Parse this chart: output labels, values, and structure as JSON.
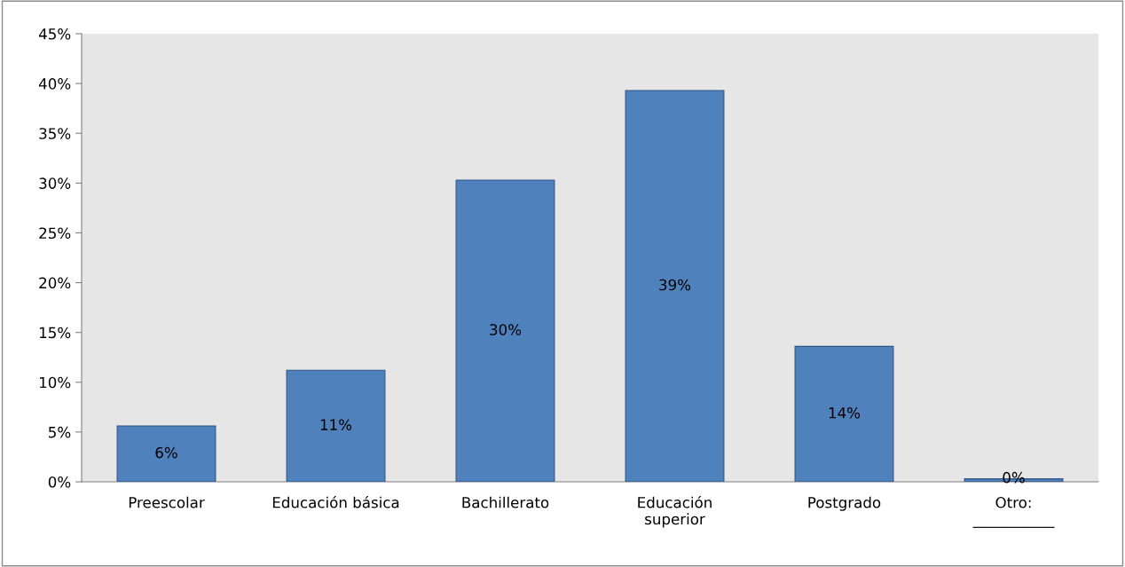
{
  "chart_data": {
    "type": "bar",
    "categories": [
      "Preescolar",
      "Educación básica",
      "Bachillerato",
      "Educación\nsuperior",
      "Postgrado",
      "Otro:\n___________"
    ],
    "values": [
      5.6,
      11.2,
      30.3,
      39.3,
      13.6,
      0.3
    ],
    "value_labels": [
      "6%",
      "11%",
      "30%",
      "39%",
      "14%",
      "0%"
    ],
    "color": "#4f81bd",
    "ylim": [
      0,
      45
    ],
    "yticks": [
      {
        "value": 0,
        "label": "0%"
      },
      {
        "value": 5,
        "label": "5%"
      },
      {
        "value": 10,
        "label": "10%"
      },
      {
        "value": 15,
        "label": "15%"
      },
      {
        "value": 20,
        "label": "20%"
      },
      {
        "value": 25,
        "label": "25%"
      },
      {
        "value": 30,
        "label": "30%"
      },
      {
        "value": 35,
        "label": "35%"
      },
      {
        "value": 40,
        "label": "40%"
      },
      {
        "value": 45,
        "label": "45%"
      }
    ],
    "grid": false,
    "legend": false
  }
}
